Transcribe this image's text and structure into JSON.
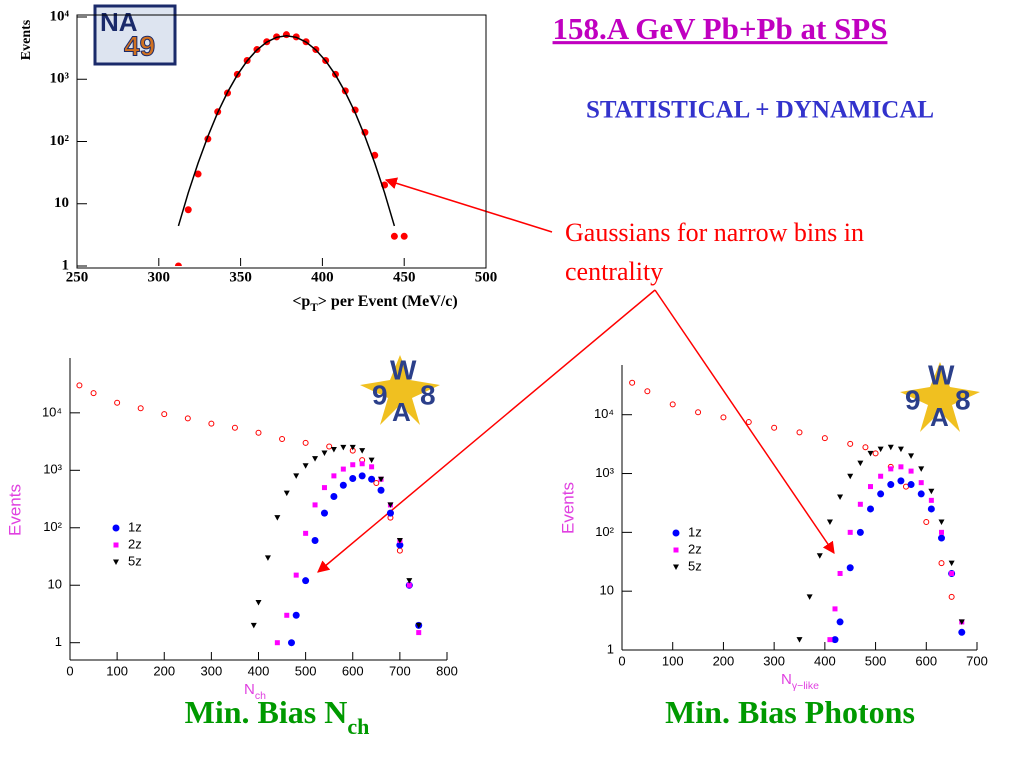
{
  "slide": {
    "title": "158.A GeV Pb+Pb at SPS",
    "subtitle": "STATISTICAL + DYNAMICAL",
    "annotation": [
      "Gaussians for narrow bins in",
      "centrality"
    ],
    "logos": {
      "na49": [
        "NA",
        "49"
      ],
      "wa98": [
        "9",
        "W",
        "A",
        "8"
      ]
    }
  },
  "chart_data": [
    {
      "type": "scatter",
      "ylabel": "Events",
      "xlabel": {
        "pre": "<p",
        "sub": "T",
        "post": "> per Event (MeV/c)"
      },
      "xlim": [
        250,
        500
      ],
      "xticks": [
        250,
        300,
        350,
        400,
        450,
        500
      ],
      "ylim": [
        1,
        10000
      ],
      "log_y": true,
      "yticks": [
        1,
        10,
        {
          "value": 100,
          "label": "10²"
        },
        {
          "value": 1000,
          "label": "10³"
        },
        {
          "value": 10000,
          "label": "10⁴"
        }
      ],
      "series": [
        {
          "color": "#ff0000",
          "marker": "circle",
          "x": [
            312,
            318,
            324,
            330,
            336,
            342,
            348,
            354,
            360,
            366,
            372,
            378,
            384,
            390,
            396,
            402,
            408,
            414,
            420,
            426,
            432,
            438,
            444,
            450
          ],
          "values": [
            1,
            8,
            30,
            110,
            300,
            600,
            1200,
            2000,
            3000,
            4000,
            4800,
            5200,
            4800,
            4000,
            3000,
            2000,
            1200,
            650,
            320,
            140,
            60,
            20,
            3,
            3
          ]
        },
        {
          "color": "#000000",
          "line": true,
          "x": [
            312,
            318,
            324,
            330,
            336,
            342,
            348,
            354,
            360,
            366,
            372,
            378,
            384,
            390,
            396,
            402,
            408,
            414,
            420,
            426,
            432,
            438,
            444
          ],
          "values": [
            4.4,
            15,
            45,
            121,
            292,
            618,
            1172,
            1974,
            2965,
            3963,
            4718,
            5000,
            4718,
            3963,
            2965,
            1974,
            1172,
            618,
            292,
            121,
            45,
            15,
            4.4
          ]
        }
      ],
      "caption": null
    },
    {
      "type": "scatter",
      "ylabel": "Events",
      "xlabel": {
        "pre": "N",
        "sub": "ch"
      },
      "caption": {
        "pre": "Min. Bias N",
        "sub": "ch"
      },
      "xlim": [
        0,
        800
      ],
      "xticks": [
        0,
        100,
        200,
        300,
        400,
        500,
        600,
        700,
        800
      ],
      "ylim": [
        0.5,
        90000
      ],
      "log_y": true,
      "yticks": [
        1,
        10,
        {
          "value": 100,
          "label": "10²"
        },
        {
          "value": 1000,
          "label": "10³"
        },
        {
          "value": 10000,
          "label": "10⁴"
        }
      ],
      "series": [
        {
          "color": "#ff0000",
          "marker": "circle-open",
          "x": [
            20,
            50,
            100,
            150,
            200,
            250,
            300,
            350,
            400,
            450,
            500,
            550,
            600,
            620,
            650,
            680,
            700,
            720,
            740
          ],
          "values": [
            30000,
            22000,
            15000,
            12000,
            9500,
            8000,
            6500,
            5500,
            4500,
            3500,
            3000,
            2600,
            2200,
            1500,
            600,
            150,
            40,
            10,
            2
          ]
        },
        {
          "name": "1z",
          "color": "#0000ff",
          "marker": "circle",
          "x": [
            470,
            480,
            500,
            520,
            540,
            560,
            580,
            600,
            620,
            640,
            660,
            680,
            700,
            720,
            740
          ],
          "values": [
            1,
            3,
            12,
            60,
            180,
            350,
            550,
            720,
            800,
            700,
            450,
            180,
            50,
            10,
            2
          ]
        },
        {
          "name": "2z",
          "color": "#ff00ff",
          "marker": "square",
          "x": [
            440,
            460,
            480,
            500,
            520,
            540,
            560,
            580,
            600,
            620,
            640,
            660,
            680,
            700,
            720,
            740
          ],
          "values": [
            1,
            3,
            15,
            80,
            250,
            500,
            800,
            1050,
            1250,
            1300,
            1150,
            700,
            250,
            60,
            10,
            1.5
          ]
        },
        {
          "name": "5z",
          "color": "#000000",
          "marker": "triangle-down",
          "x": [
            390,
            400,
            420,
            440,
            460,
            480,
            500,
            520,
            540,
            560,
            580,
            600,
            620,
            640,
            660,
            680,
            700,
            720,
            740
          ],
          "values": [
            2,
            5,
            30,
            150,
            400,
            800,
            1200,
            1600,
            2000,
            2300,
            2500,
            2500,
            2200,
            1500,
            700,
            250,
            60,
            12,
            2
          ]
        }
      ]
    },
    {
      "type": "scatter",
      "ylabel": "Events",
      "xlabel": {
        "pre": "N",
        "sub": "γ−like"
      },
      "caption": {
        "pre": "Min. Bias Photons"
      },
      "xlim": [
        0,
        700
      ],
      "xticks": [
        0,
        100,
        200,
        300,
        400,
        500,
        600,
        700
      ],
      "ylim": [
        1,
        70000
      ],
      "log_y": true,
      "yticks": [
        1,
        10,
        {
          "value": 100,
          "label": "10²"
        },
        {
          "value": 1000,
          "label": "10³"
        },
        {
          "value": 10000,
          "label": "10⁴"
        }
      ],
      "series": [
        {
          "color": "#ff0000",
          "marker": "circle-open",
          "x": [
            20,
            50,
            100,
            150,
            200,
            250,
            300,
            350,
            400,
            450,
            480,
            500,
            530,
            560,
            600,
            630,
            650,
            670
          ],
          "values": [
            35000,
            25000,
            15000,
            11000,
            9000,
            7500,
            6000,
            5000,
            4000,
            3200,
            2800,
            2200,
            1300,
            600,
            150,
            30,
            8,
            2
          ]
        },
        {
          "name": "1z",
          "color": "#0000ff",
          "marker": "circle",
          "x": [
            420,
            430,
            450,
            470,
            490,
            510,
            530,
            550,
            570,
            590,
            610,
            630,
            650,
            670
          ],
          "values": [
            1.5,
            3,
            25,
            100,
            250,
            450,
            650,
            750,
            650,
            450,
            250,
            80,
            20,
            2
          ]
        },
        {
          "name": "2z",
          "color": "#ff00ff",
          "marker": "square",
          "x": [
            410,
            420,
            430,
            450,
            470,
            490,
            510,
            530,
            550,
            570,
            590,
            610,
            630,
            650,
            670
          ],
          "values": [
            1.5,
            5,
            20,
            100,
            300,
            600,
            900,
            1200,
            1300,
            1100,
            700,
            350,
            100,
            20,
            3
          ]
        },
        {
          "name": "5z",
          "color": "#000000",
          "marker": "triangle-down",
          "x": [
            350,
            370,
            390,
            410,
            430,
            450,
            470,
            490,
            510,
            530,
            550,
            570,
            590,
            610,
            630,
            650,
            670
          ],
          "values": [
            1.5,
            8,
            40,
            150,
            400,
            900,
            1500,
            2200,
            2600,
            2800,
            2600,
            2000,
            1200,
            500,
            150,
            30,
            3
          ]
        }
      ]
    }
  ]
}
